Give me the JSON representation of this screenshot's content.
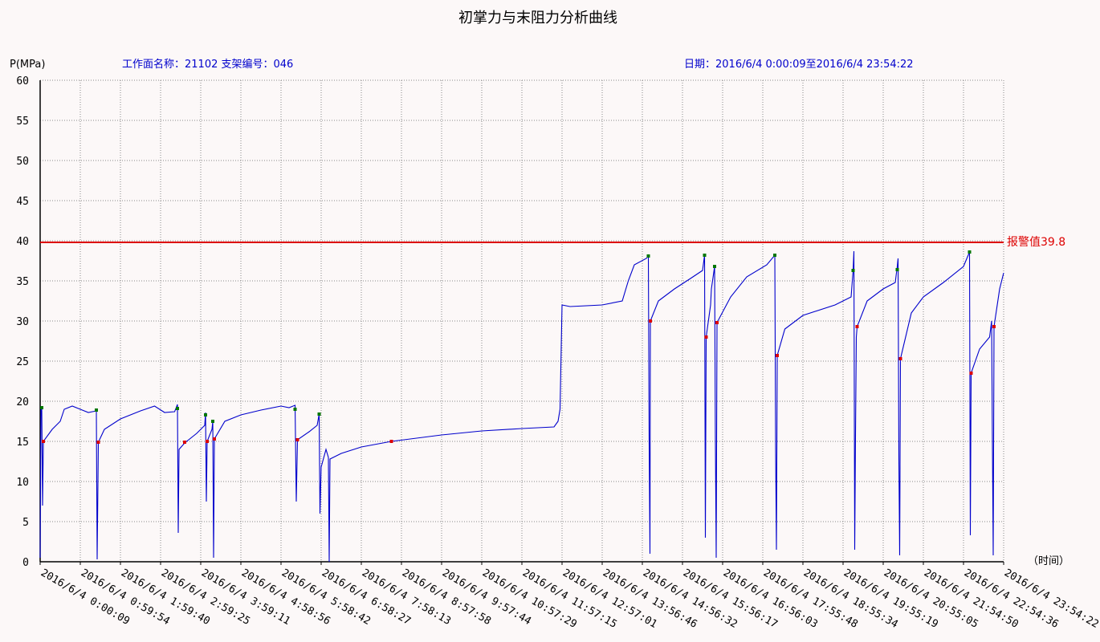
{
  "header": {
    "title": "初掌力与末阻力分析曲线",
    "y_unit": "P(MPa)",
    "face_label": "工作面名称：21102  支架编号：046",
    "date_label": "日期：2016/6/4 0:00:09至2016/6/4 23:54:22",
    "x_unit": "（时间）"
  },
  "colors": {
    "curve": "#0000cc",
    "alarm": "#dd0000",
    "header_text": "#0000cc",
    "initial_marker": "#dd0000",
    "final_marker": "#007700",
    "grid": "#888888",
    "background": "#fcf8f8"
  },
  "chart_data": {
    "type": "line",
    "title": "初掌力与末阻力分析曲线",
    "ylabel": "P(MPa)",
    "xlabel": "（时间）",
    "ylim": [
      0,
      60
    ],
    "xlim_hours": [
      0,
      24
    ],
    "grid": true,
    "y_ticks": [
      "0",
      "5",
      "10",
      "15",
      "20",
      "25",
      "30",
      "35",
      "40",
      "45",
      "50",
      "55",
      "60"
    ],
    "x_tick_labels": [
      "2016/6/4 0:00:09",
      "2016/6/4 0:59:54",
      "2016/6/4 1:59:40",
      "2016/6/4 2:59:25",
      "2016/6/4 3:59:11",
      "2016/6/4 4:58:56",
      "2016/6/4 5:58:42",
      "2016/6/4 6:58:27",
      "2016/6/4 7:58:13",
      "2016/6/4 8:57:58",
      "2016/6/4 9:57:44",
      "2016/6/4 10:57:29",
      "2016/6/4 11:57:15",
      "2016/6/4 12:57:01",
      "2016/6/4 13:56:46",
      "2016/6/4 14:56:32",
      "2016/6/4 15:56:17",
      "2016/6/4 16:56:03",
      "2016/6/4 17:55:48",
      "2016/6/4 18:55:34",
      "2016/6/4 19:55:19",
      "2016/6/4 20:55:05",
      "2016/6/4 21:54:50",
      "2016/6/4 22:54:36",
      "2016/6/4 23:54:22"
    ],
    "alarm": {
      "value": 39.8,
      "label": "报警值39.8"
    },
    "series": [
      {
        "points": [
          [
            0.0,
            0.5
          ],
          [
            0.02,
            19.3
          ],
          [
            0.04,
            19.2
          ],
          [
            0.06,
            7.0
          ],
          [
            0.08,
            15.0
          ],
          [
            0.3,
            16.5
          ],
          [
            0.5,
            17.5
          ],
          [
            0.6,
            19.0
          ],
          [
            0.8,
            19.4
          ],
          [
            1.0,
            19.0
          ],
          [
            1.2,
            18.6
          ],
          [
            1.4,
            18.8
          ],
          [
            1.42,
            0.3
          ],
          [
            1.45,
            14.9
          ],
          [
            1.6,
            16.5
          ],
          [
            2.0,
            17.8
          ],
          [
            2.5,
            18.8
          ],
          [
            2.85,
            19.4
          ],
          [
            3.1,
            18.6
          ],
          [
            3.35,
            18.7
          ],
          [
            3.42,
            19.6
          ],
          [
            3.44,
            3.6
          ],
          [
            3.46,
            14.0
          ],
          [
            3.6,
            14.8
          ],
          [
            3.9,
            16.0
          ],
          [
            4.1,
            17.0
          ],
          [
            4.12,
            18.6
          ],
          [
            4.14,
            7.5
          ],
          [
            4.16,
            15.0
          ],
          [
            4.28,
            16.5
          ],
          [
            4.3,
            17.5
          ],
          [
            4.32,
            0.5
          ],
          [
            4.34,
            15.3
          ],
          [
            4.6,
            17.5
          ],
          [
            5.0,
            18.3
          ],
          [
            5.5,
            18.9
          ],
          [
            6.0,
            19.4
          ],
          [
            6.2,
            19.2
          ],
          [
            6.35,
            19.5
          ],
          [
            6.38,
            7.5
          ],
          [
            6.41,
            15.2
          ],
          [
            6.7,
            16.2
          ],
          [
            6.9,
            17.0
          ],
          [
            6.95,
            18.4
          ],
          [
            6.97,
            6.0
          ],
          [
            7.0,
            11.8
          ],
          [
            7.12,
            14.0
          ],
          [
            7.18,
            13.0
          ],
          [
            7.2,
            0.0
          ],
          [
            7.22,
            12.8
          ],
          [
            7.5,
            13.5
          ],
          [
            8.0,
            14.3
          ],
          [
            8.75,
            15.0
          ],
          [
            10.0,
            15.8
          ],
          [
            11.0,
            16.3
          ],
          [
            12.0,
            16.6
          ],
          [
            12.8,
            16.8
          ],
          [
            12.9,
            17.5
          ],
          [
            12.95,
            19.0
          ],
          [
            13.0,
            32.0
          ],
          [
            13.2,
            31.8
          ],
          [
            14.0,
            32.0
          ],
          [
            14.5,
            32.5
          ],
          [
            14.65,
            35.0
          ],
          [
            14.8,
            37.0
          ],
          [
            15.1,
            37.8
          ],
          [
            15.15,
            38.1
          ],
          [
            15.17,
            15.0
          ],
          [
            15.19,
            1.0
          ],
          [
            15.2,
            30.0
          ],
          [
            15.4,
            32.5
          ],
          [
            15.8,
            34.0
          ],
          [
            16.2,
            35.3
          ],
          [
            16.5,
            36.3
          ],
          [
            16.55,
            38.2
          ],
          [
            16.57,
            3.0
          ],
          [
            16.59,
            28.0
          ],
          [
            16.7,
            32.0
          ],
          [
            16.72,
            34.0
          ],
          [
            16.8,
            36.8
          ],
          [
            16.82,
            15.0
          ],
          [
            16.84,
            0.5
          ],
          [
            16.86,
            29.8
          ],
          [
            17.2,
            33.0
          ],
          [
            17.6,
            35.5
          ],
          [
            18.1,
            37.0
          ],
          [
            18.3,
            38.2
          ],
          [
            18.32,
            14.0
          ],
          [
            18.34,
            1.5
          ],
          [
            18.36,
            25.7
          ],
          [
            18.55,
            29.0
          ],
          [
            19.0,
            30.7
          ],
          [
            19.8,
            32.0
          ],
          [
            20.2,
            33.0
          ],
          [
            20.25,
            36.3
          ],
          [
            20.27,
            38.7
          ],
          [
            20.29,
            1.5
          ],
          [
            20.31,
            16.0
          ],
          [
            20.33,
            28.0
          ],
          [
            20.35,
            29.3
          ],
          [
            20.6,
            32.5
          ],
          [
            21.0,
            34.0
          ],
          [
            21.3,
            34.8
          ],
          [
            21.35,
            36.8
          ],
          [
            21.37,
            37.8
          ],
          [
            21.39,
            13.0
          ],
          [
            21.41,
            0.8
          ],
          [
            21.43,
            25.3
          ],
          [
            21.7,
            31.0
          ],
          [
            22.0,
            33.0
          ],
          [
            22.5,
            34.8
          ],
          [
            23.0,
            36.8
          ],
          [
            23.15,
            38.6
          ],
          [
            23.17,
            3.3
          ],
          [
            23.19,
            23.5
          ],
          [
            23.4,
            26.5
          ],
          [
            23.65,
            28.0
          ],
          [
            23.7,
            30.0
          ],
          [
            23.72,
            15.0
          ],
          [
            23.74,
            0.8
          ],
          [
            23.76,
            29.3
          ],
          [
            23.9,
            34.0
          ],
          [
            24.0,
            36.0
          ]
        ]
      }
    ],
    "initial_markers": [
      [
        0.08,
        15.0
      ],
      [
        1.45,
        14.9
      ],
      [
        3.6,
        14.9
      ],
      [
        4.16,
        15.0
      ],
      [
        4.34,
        15.3
      ],
      [
        6.41,
        15.2
      ],
      [
        8.75,
        15.0
      ],
      [
        15.2,
        30.0
      ],
      [
        16.59,
        28.0
      ],
      [
        16.86,
        29.8
      ],
      [
        18.36,
        25.7
      ],
      [
        20.35,
        29.3
      ],
      [
        21.43,
        25.3
      ],
      [
        23.19,
        23.5
      ],
      [
        23.76,
        29.3
      ]
    ],
    "final_markers": [
      [
        0.04,
        19.2
      ],
      [
        1.4,
        18.9
      ],
      [
        3.42,
        19.1
      ],
      [
        4.12,
        18.3
      ],
      [
        4.3,
        17.5
      ],
      [
        6.35,
        19.0
      ],
      [
        6.95,
        18.4
      ],
      [
        15.15,
        38.1
      ],
      [
        16.55,
        38.2
      ],
      [
        16.8,
        36.8
      ],
      [
        18.3,
        38.2
      ],
      [
        20.25,
        36.3
      ],
      [
        21.35,
        36.4
      ],
      [
        23.15,
        38.6
      ]
    ]
  }
}
